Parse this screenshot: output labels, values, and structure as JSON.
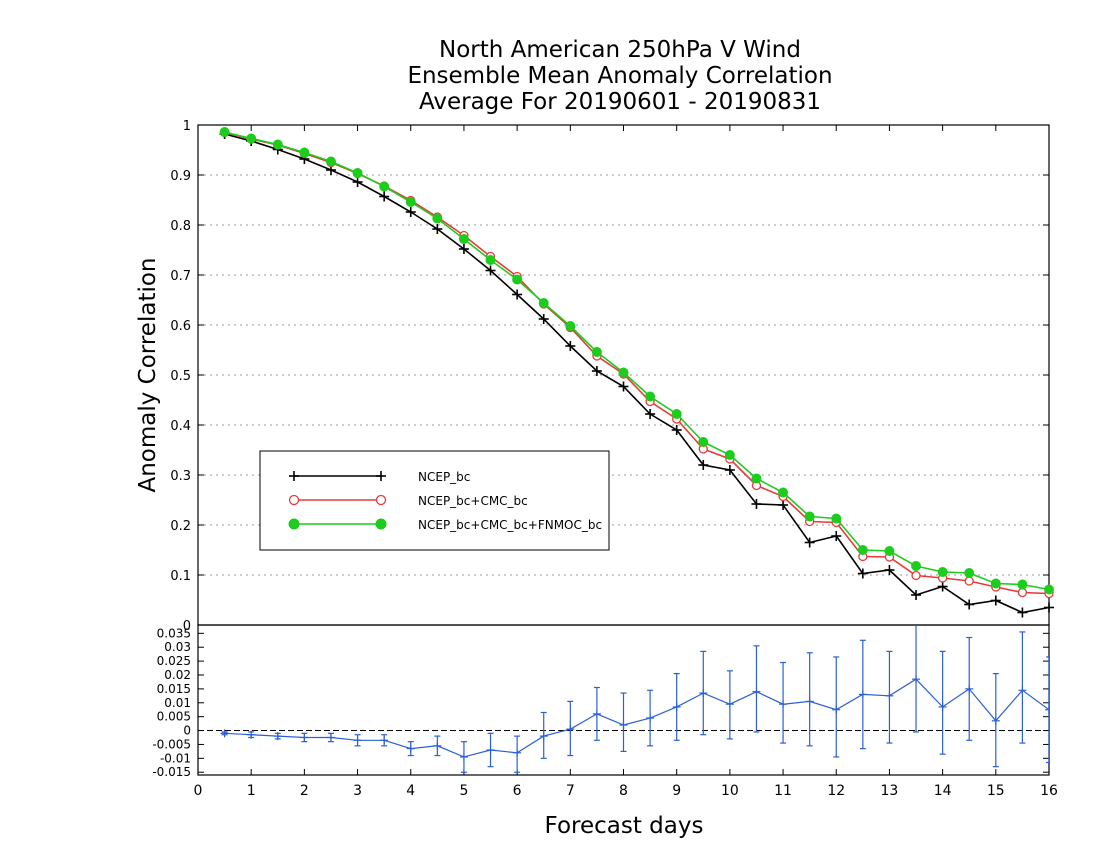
{
  "title_lines": [
    "North American 250hPa V Wind",
    "Ensemble Mean Anomaly Correlation",
    "Average For 20190601 - 20190831"
  ],
  "chart_data": [
    {
      "type": "line",
      "ylabel": "Anomaly Correlation",
      "xlim": [
        0,
        16
      ],
      "ylim": [
        0,
        1
      ],
      "y_ticks": [
        "0",
        "0.1",
        "0.2",
        "0.3",
        "0.4",
        "0.5",
        "0.6",
        "0.7",
        "0.8",
        "0.9",
        "1"
      ],
      "grid": true,
      "legend_position": "middle-left",
      "x": [
        0.5,
        1,
        1.5,
        2,
        2.5,
        3,
        3.5,
        4,
        4.5,
        5,
        5.5,
        6,
        6.5,
        7,
        7.5,
        8,
        8.5,
        9,
        9.5,
        10,
        10.5,
        11,
        11.5,
        12,
        12.5,
        13,
        13.5,
        14,
        14.5,
        15,
        15.5,
        16
      ],
      "series": [
        {
          "name": "NCEP_bc",
          "color": "#000000",
          "marker": "plus",
          "values": [
            0.982,
            0.968,
            0.951,
            0.932,
            0.91,
            0.886,
            0.857,
            0.826,
            0.792,
            0.752,
            0.709,
            0.661,
            0.612,
            0.558,
            0.508,
            0.477,
            0.422,
            0.39,
            0.32,
            0.31,
            0.242,
            0.24,
            0.165,
            0.178,
            0.103,
            0.11,
            0.06,
            0.077,
            0.041,
            0.049,
            0.025,
            0.035
          ]
        },
        {
          "name": "NCEP_bc+CMC_bc",
          "color": "#e83a3a",
          "marker": "open-circle",
          "values": [
            0.985,
            0.972,
            0.96,
            0.943,
            0.925,
            0.903,
            0.878,
            0.849,
            0.816,
            0.779,
            0.737,
            0.697,
            0.642,
            0.595,
            0.538,
            0.502,
            0.447,
            0.412,
            0.352,
            0.332,
            0.279,
            0.257,
            0.207,
            0.205,
            0.137,
            0.136,
            0.099,
            0.094,
            0.088,
            0.076,
            0.065,
            0.063
          ]
        },
        {
          "name": "NCEP_bc+CMC_bc+FNMOC_bc",
          "color": "#1dcc1d",
          "marker": "filled-circle",
          "values": [
            0.986,
            0.973,
            0.961,
            0.945,
            0.927,
            0.904,
            0.877,
            0.846,
            0.813,
            0.772,
            0.73,
            0.691,
            0.644,
            0.598,
            0.546,
            0.505,
            0.457,
            0.422,
            0.366,
            0.34,
            0.293,
            0.265,
            0.217,
            0.213,
            0.15,
            0.148,
            0.118,
            0.106,
            0.104,
            0.083,
            0.081,
            0.071
          ]
        }
      ]
    },
    {
      "type": "line",
      "xlabel": "Forecast days",
      "xlim": [
        0,
        16
      ],
      "ylim": [
        -0.016,
        0.038
      ],
      "x_ticks": [
        "0",
        "1",
        "2",
        "3",
        "4",
        "5",
        "6",
        "7",
        "8",
        "9",
        "10",
        "11",
        "12",
        "13",
        "14",
        "15",
        "16"
      ],
      "y_ticks": [
        "-0.015",
        "-0.01",
        "-0.005",
        "0",
        "0.005",
        "0.01",
        "0.015",
        "0.02",
        "0.025",
        "0.03",
        "0.035"
      ],
      "series": [
        {
          "name": "",
          "color": "#2b5fd6",
          "marker": "plus",
          "error_bars": true,
          "x": [
            0.5,
            1,
            1.5,
            2,
            2.5,
            3,
            3.5,
            4,
            4.5,
            5,
            5.5,
            6,
            6.5,
            7,
            7.5,
            8,
            8.5,
            9,
            9.5,
            10,
            10.5,
            11,
            11.5,
            12,
            12.5,
            13,
            13.5,
            14,
            14.5,
            15,
            15.5,
            16
          ],
          "values": [
            -0.001,
            -0.0015,
            -0.002,
            -0.0025,
            -0.0025,
            -0.0035,
            -0.0035,
            -0.0065,
            -0.0055,
            -0.0095,
            -0.007,
            -0.008,
            -0.002,
            0.0005,
            0.006,
            0.002,
            0.0045,
            0.0085,
            0.0135,
            0.0095,
            0.014,
            0.0095,
            0.0105,
            0.0075,
            0.013,
            0.0125,
            0.0185,
            0.0085,
            0.015,
            0.0035,
            0.0145,
            0.0075
          ],
          "lower": [
            -0.0015,
            -0.0025,
            -0.003,
            -0.004,
            -0.004,
            -0.0055,
            -0.0055,
            -0.009,
            -0.009,
            -0.015,
            -0.013,
            -0.015,
            -0.01,
            -0.009,
            -0.0035,
            -0.0075,
            -0.0055,
            -0.0035,
            -0.0015,
            -0.003,
            -0.0005,
            -0.0045,
            -0.0055,
            -0.0095,
            -0.0065,
            -0.0045,
            -0.0005,
            -0.0085,
            -0.0035,
            -0.013,
            -0.0045,
            -0.0115
          ],
          "upper": [
            -0.0005,
            -0.0005,
            -0.001,
            -0.001,
            -0.001,
            -0.0015,
            -0.0015,
            -0.004,
            -0.002,
            -0.004,
            -0.001,
            -0.002,
            0.0065,
            0.0105,
            0.0155,
            0.0135,
            0.0145,
            0.0205,
            0.0285,
            0.0215,
            0.0305,
            0.0245,
            0.028,
            0.0265,
            0.0325,
            0.0285,
            0.0385,
            0.0285,
            0.0335,
            0.0205,
            0.0355,
            0.0265
          ]
        }
      ]
    }
  ]
}
